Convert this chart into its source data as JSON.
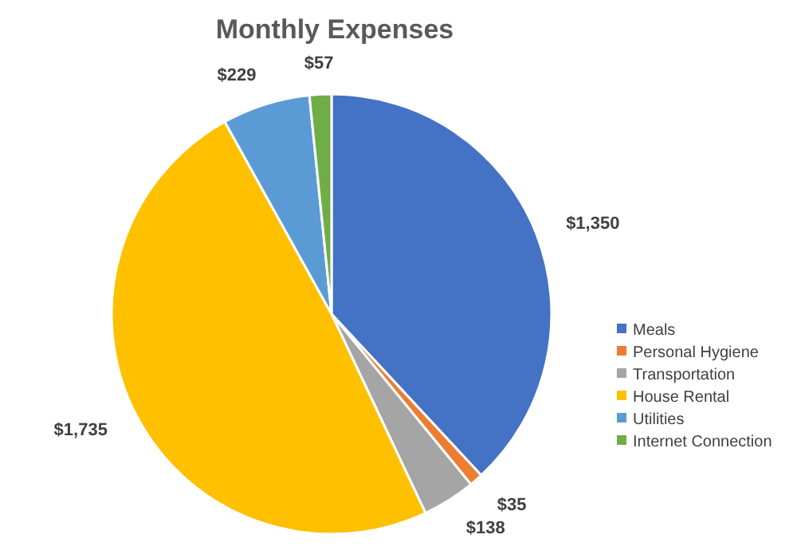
{
  "chart_data": {
    "type": "pie",
    "title": "Monthly Expenses",
    "categories": [
      "Meals",
      "Personal Hygiene",
      "Transportation",
      "House Rental",
      "Utilities",
      "Internet Connection"
    ],
    "values": [
      1350,
      35,
      138,
      1735,
      229,
      57
    ],
    "value_labels": [
      "$1,350",
      "$35",
      "$138",
      "$1,735",
      "$229",
      "$57"
    ],
    "colors": [
      "#4472c4",
      "#ed7d31",
      "#a5a5a5",
      "#ffc000",
      "#5b9bd5",
      "#70ad47"
    ],
    "legend": "right"
  }
}
